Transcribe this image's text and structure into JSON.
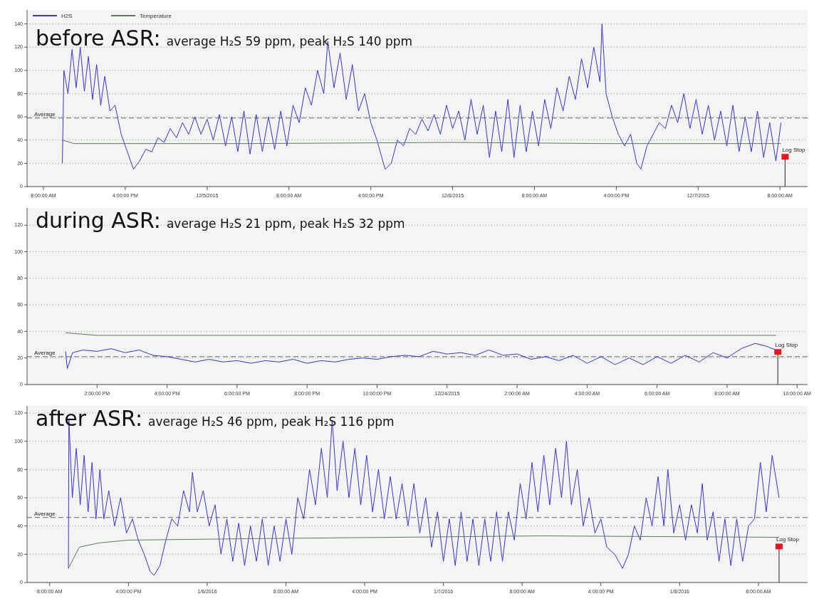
{
  "chart_data": [
    {
      "type": "line",
      "title": "before ASR:",
      "subtitle": "average H₂S 59 ppm, peak H₂S 140 ppm",
      "legend": "top left",
      "grid": "y",
      "marker": "none",
      "line_style": "solid",
      "xlim": [
        "2015-12-04T06:24",
        "2015-12-07T10:42"
      ],
      "xticks": [
        {
          "value": "2015-12-04T08:00",
          "label": "8:00:00 AM"
        },
        {
          "value": "2015-12-04T16:00",
          "label": "4:00:00 PM"
        },
        {
          "value": "2015-12-05T00:00",
          "label": "12/5/2015"
        },
        {
          "value": "2015-12-05T08:00",
          "label": "8:00:00 AM"
        },
        {
          "value": "2015-12-05T16:00",
          "label": "4:00:00 PM"
        },
        {
          "value": "2015-12-06T00:00",
          "label": "12/6/2015"
        },
        {
          "value": "2015-12-06T08:00",
          "label": "8:00:00 AM"
        },
        {
          "value": "2015-12-06T16:00",
          "label": "4:00:00 PM"
        },
        {
          "value": "2015-12-07T00:00",
          "label": "12/7/2015"
        },
        {
          "value": "2015-12-07T08:00",
          "label": "8:00:00 AM"
        }
      ],
      "ylim": [
        0,
        152
      ],
      "yticks": [
        0,
        20,
        40,
        60,
        80,
        100,
        120,
        140
      ],
      "ref_lines": [
        {
          "axis": "y",
          "value": 59,
          "label": "Average",
          "line_style": "dashed",
          "color": "#666666"
        }
      ],
      "annotations": [
        {
          "text": "Log Stop",
          "x": "2015-12-07T08:30",
          "y": 25
        }
      ],
      "series": [
        {
          "name": "H2S",
          "color": "#3535d8",
          "x": [
            "2015-12-04T09:51",
            "2015-12-04T10:00",
            "2015-12-04T10:24",
            "2015-12-04T10:48",
            "2015-12-04T11:12",
            "2015-12-04T11:36",
            "2015-12-04T12:00",
            "2015-12-04T12:24",
            "2015-12-04T12:48",
            "2015-12-04T13:12",
            "2015-12-04T13:36",
            "2015-12-04T14:00",
            "2015-12-04T14:30",
            "2015-12-04T15:00",
            "2015-12-04T15:36",
            "2015-12-04T16:12",
            "2015-12-04T16:48",
            "2015-12-04T17:24",
            "2015-12-04T18:00",
            "2015-12-04T18:36",
            "2015-12-04T19:12",
            "2015-12-04T19:48",
            "2015-12-04T20:24",
            "2015-12-04T21:00",
            "2015-12-04T21:36",
            "2015-12-04T22:12",
            "2015-12-04T22:48",
            "2015-12-04T23:24",
            "2015-12-05T00:00",
            "2015-12-05T00:36",
            "2015-12-05T01:12",
            "2015-12-05T01:48",
            "2015-12-05T02:24",
            "2015-12-05T03:00",
            "2015-12-05T03:36",
            "2015-12-05T04:12",
            "2015-12-05T04:48",
            "2015-12-05T05:24",
            "2015-12-05T06:00",
            "2015-12-05T06:36",
            "2015-12-05T07:12",
            "2015-12-05T07:48",
            "2015-12-05T08:24",
            "2015-12-05T09:00",
            "2015-12-05T09:36",
            "2015-12-05T10:12",
            "2015-12-05T10:48",
            "2015-12-05T11:24",
            "2015-12-05T11:48",
            "2015-12-05T12:24",
            "2015-12-05T13:00",
            "2015-12-05T13:36",
            "2015-12-05T14:12",
            "2015-12-05T14:48",
            "2015-12-05T15:24",
            "2015-12-05T16:00",
            "2015-12-05T16:36",
            "2015-12-05T17:24",
            "2015-12-05T18:00",
            "2015-12-05T18:36",
            "2015-12-05T19:12",
            "2015-12-05T19:48",
            "2015-12-05T20:24",
            "2015-12-05T21:00",
            "2015-12-05T21:36",
            "2015-12-05T22:12",
            "2015-12-05T22:48",
            "2015-12-05T23:24",
            "2015-12-06T00:00",
            "2015-12-06T00:36",
            "2015-12-06T01:12",
            "2015-12-06T01:48",
            "2015-12-06T02:24",
            "2015-12-06T03:00",
            "2015-12-06T03:36",
            "2015-12-06T04:12",
            "2015-12-06T04:48",
            "2015-12-06T05:24",
            "2015-12-06T06:00",
            "2015-12-06T06:36",
            "2015-12-06T07:12",
            "2015-12-06T07:48",
            "2015-12-06T08:24",
            "2015-12-06T09:00",
            "2015-12-06T09:36",
            "2015-12-06T10:12",
            "2015-12-06T10:48",
            "2015-12-06T11:24",
            "2015-12-06T12:00",
            "2015-12-06T12:36",
            "2015-12-06T13:12",
            "2015-12-06T13:48",
            "2015-12-06T14:24",
            "2015-12-06T14:36",
            "2015-12-06T15:00",
            "2015-12-06T15:36",
            "2015-12-06T16:12",
            "2015-12-06T16:48",
            "2015-12-06T17:24",
            "2015-12-06T18:00",
            "2015-12-06T18:24",
            "2015-12-06T19:00",
            "2015-12-06T19:36",
            "2015-12-06T20:12",
            "2015-12-06T20:48",
            "2015-12-06T21:24",
            "2015-12-06T22:00",
            "2015-12-06T22:36",
            "2015-12-06T23:12",
            "2015-12-06T23:48",
            "2015-12-07T00:24",
            "2015-12-07T01:00",
            "2015-12-07T01:36",
            "2015-12-07T02:12",
            "2015-12-07T02:48",
            "2015-12-07T03:24",
            "2015-12-07T04:00",
            "2015-12-07T04:36",
            "2015-12-07T05:12",
            "2015-12-07T05:48",
            "2015-12-07T06:24",
            "2015-12-07T07:00",
            "2015-12-07T07:36",
            "2015-12-07T08:06"
          ],
          "values": [
            20,
            100,
            80,
            118,
            85,
            120,
            82,
            112,
            75,
            105,
            70,
            95,
            65,
            70,
            45,
            30,
            15,
            22,
            32,
            30,
            42,
            38,
            50,
            42,
            55,
            45,
            60,
            45,
            58,
            40,
            62,
            35,
            60,
            30,
            65,
            28,
            62,
            30,
            60,
            32,
            65,
            35,
            70,
            55,
            85,
            70,
            100,
            80,
            125,
            85,
            115,
            75,
            105,
            65,
            80,
            55,
            40,
            15,
            20,
            40,
            35,
            50,
            45,
            58,
            48,
            62,
            45,
            70,
            50,
            65,
            40,
            75,
            45,
            70,
            25,
            65,
            30,
            75,
            25,
            70,
            30,
            65,
            35,
            75,
            50,
            85,
            65,
            95,
            75,
            110,
            85,
            120,
            90,
            140,
            80,
            60,
            45,
            35,
            45,
            20,
            15,
            35,
            45,
            55,
            50,
            70,
            55,
            80,
            50,
            75,
            45,
            70,
            40,
            65,
            35,
            70,
            30,
            60,
            30,
            65,
            25,
            55,
            22,
            55
          ]
        },
        {
          "name": "Temperature",
          "color": "#5b7a5b",
          "x": [
            "2015-12-04T09:51",
            "2015-12-04T11:00",
            "2015-12-05T04:00",
            "2015-12-06T00:00",
            "2015-12-06T15:00",
            "2015-12-07T08:06"
          ],
          "values": [
            40,
            37,
            37,
            38,
            37,
            37
          ]
        }
      ]
    },
    {
      "type": "line",
      "title": "during ASR:",
      "subtitle": "average H₂S 21 ppm, peak H₂S 32 ppm",
      "grid": "y",
      "marker": "none",
      "line_style": "solid",
      "xlim": [
        "2015-12-23T12:00",
        "2015-12-24T10:18"
      ],
      "xticks": [
        {
          "value": "2015-12-23T14:00",
          "label": "2:00:00 PM"
        },
        {
          "value": "2015-12-23T16:00",
          "label": "4:00:00 PM"
        },
        {
          "value": "2015-12-23T18:00",
          "label": "6:00:00 PM"
        },
        {
          "value": "2015-12-23T20:00",
          "label": "8:00:00 PM"
        },
        {
          "value": "2015-12-23T22:00",
          "label": "10:00:00 PM"
        },
        {
          "value": "2015-12-24T00:00",
          "label": "12/24/2015"
        },
        {
          "value": "2015-12-24T02:00",
          "label": "2:00:00 AM"
        },
        {
          "value": "2015-12-24T04:00",
          "label": "4:00:00 AM"
        },
        {
          "value": "2015-12-24T06:00",
          "label": "6:00:00 AM"
        },
        {
          "value": "2015-12-24T08:00",
          "label": "8:00:00 AM"
        },
        {
          "value": "2015-12-24T10:00",
          "label": "10:00:00 AM"
        }
      ],
      "ylim": [
        0,
        133
      ],
      "yticks": [
        0,
        20,
        40,
        60,
        80,
        100,
        120
      ],
      "ref_lines": [
        {
          "axis": "y",
          "value": 21,
          "label": "Average",
          "line_style": "dashed",
          "color": "#666666"
        }
      ],
      "annotations": [
        {
          "text": "Log Stop",
          "x": "2015-12-24T09:27",
          "y": 24
        }
      ],
      "series": [
        {
          "color": "#3535d8",
          "x": [
            "2015-12-23T13:06",
            "2015-12-23T13:09",
            "2015-12-23T13:18",
            "2015-12-23T13:36",
            "2015-12-23T14:00",
            "2015-12-23T14:24",
            "2015-12-23T14:48",
            "2015-12-23T15:12",
            "2015-12-23T15:36",
            "2015-12-23T16:00",
            "2015-12-23T16:24",
            "2015-12-23T16:48",
            "2015-12-23T17:12",
            "2015-12-23T17:36",
            "2015-12-23T18:00",
            "2015-12-23T18:24",
            "2015-12-23T18:48",
            "2015-12-23T19:12",
            "2015-12-23T19:36",
            "2015-12-23T20:00",
            "2015-12-23T20:24",
            "2015-12-23T20:48",
            "2015-12-23T21:12",
            "2015-12-23T21:36",
            "2015-12-23T22:00",
            "2015-12-23T22:24",
            "2015-12-23T22:48",
            "2015-12-23T23:12",
            "2015-12-23T23:36",
            "2015-12-24T00:00",
            "2015-12-24T00:24",
            "2015-12-24T00:48",
            "2015-12-24T01:12",
            "2015-12-24T01:36",
            "2015-12-24T02:00",
            "2015-12-24T02:24",
            "2015-12-24T02:48",
            "2015-12-24T03:12",
            "2015-12-24T03:36",
            "2015-12-24T04:00",
            "2015-12-24T04:24",
            "2015-12-24T04:48",
            "2015-12-24T05:12",
            "2015-12-24T05:36",
            "2015-12-24T06:00",
            "2015-12-24T06:24",
            "2015-12-24T06:48",
            "2015-12-24T07:12",
            "2015-12-24T07:36",
            "2015-12-24T08:00",
            "2015-12-24T08:24",
            "2015-12-24T08:48",
            "2015-12-24T09:06",
            "2015-12-24T09:24"
          ],
          "values": [
            25,
            12,
            24,
            26,
            25,
            27,
            24,
            26,
            22,
            21,
            19,
            17,
            19,
            17,
            18,
            16,
            18,
            17,
            19,
            16,
            18,
            17,
            19,
            20,
            19,
            21,
            22,
            21,
            25,
            23,
            24,
            22,
            26,
            22,
            23,
            19,
            21,
            18,
            22,
            16,
            21,
            15,
            20,
            15,
            21,
            16,
            22,
            17,
            24,
            20,
            27,
            31,
            29,
            26
          ]
        },
        {
          "color": "#5b7a5b",
          "x": [
            "2015-12-23T13:06",
            "2015-12-23T14:00",
            "2015-12-23T22:00",
            "2015-12-24T09:24"
          ],
          "values": [
            39,
            37,
            37,
            37
          ]
        }
      ]
    },
    {
      "type": "line",
      "title": "after ASR:",
      "subtitle": "average H₂S 46 ppm, peak H₂S 116 ppm",
      "grid": "y",
      "marker": "none",
      "line_style": "solid",
      "xlim": [
        "2016-01-05T05:42",
        "2016-01-08T13:00"
      ],
      "xticks": [
        {
          "value": "2016-01-05T08:00",
          "label": "8:00:00 AM"
        },
        {
          "value": "2016-01-05T16:00",
          "label": "4:00:00 PM"
        },
        {
          "value": "2016-01-06T00:00",
          "label": "1/6/2016"
        },
        {
          "value": "2016-01-06T08:00",
          "label": "8:00:00 AM"
        },
        {
          "value": "2016-01-06T16:00",
          "label": "4:00:00 PM"
        },
        {
          "value": "2016-01-07T00:00",
          "label": "1/7/2016"
        },
        {
          "value": "2016-01-07T08:00",
          "label": "8:00:00 AM"
        },
        {
          "value": "2016-01-07T16:00",
          "label": "4:00:00 PM"
        },
        {
          "value": "2016-01-08T00:00",
          "label": "1/8/2016"
        },
        {
          "value": "2016-01-08T08:00",
          "label": "8:00:00 AM"
        }
      ],
      "ylim": [
        0,
        125
      ],
      "yticks": [
        0,
        20,
        40,
        60,
        80,
        100,
        120
      ],
      "ref_lines": [
        {
          "axis": "y",
          "value": 46,
          "label": "Average",
          "line_style": "dashed",
          "color": "#666666"
        }
      ],
      "annotations": [
        {
          "text": "Log Stop",
          "x": "2016-01-08T10:06",
          "y": 25
        }
      ],
      "series": [
        {
          "color": "#3535d8",
          "x": [
            "2016-01-05T09:54",
            "2016-01-05T09:57",
            "2016-01-05T10:18",
            "2016-01-05T10:42",
            "2016-01-05T11:06",
            "2016-01-05T11:30",
            "2016-01-05T11:54",
            "2016-01-05T12:18",
            "2016-01-05T12:42",
            "2016-01-05T13:06",
            "2016-01-05T13:30",
            "2016-01-05T14:00",
            "2016-01-05T14:36",
            "2016-01-05T15:12",
            "2016-01-05T15:48",
            "2016-01-05T16:24",
            "2016-01-05T17:00",
            "2016-01-05T17:36",
            "2016-01-05T18:12",
            "2016-01-05T18:36",
            "2016-01-05T19:12",
            "2016-01-05T19:48",
            "2016-01-05T20:24",
            "2016-01-05T21:00",
            "2016-01-05T21:36",
            "2016-01-05T22:12",
            "2016-01-05T22:30",
            "2016-01-05T23:00",
            "2016-01-05T23:36",
            "2016-01-06T00:12",
            "2016-01-06T00:48",
            "2016-01-06T01:24",
            "2016-01-06T02:00",
            "2016-01-06T02:36",
            "2016-01-06T03:12",
            "2016-01-06T03:48",
            "2016-01-06T04:24",
            "2016-01-06T05:00",
            "2016-01-06T05:36",
            "2016-01-06T06:12",
            "2016-01-06T06:48",
            "2016-01-06T07:24",
            "2016-01-06T08:00",
            "2016-01-06T08:36",
            "2016-01-06T09:12",
            "2016-01-06T09:48",
            "2016-01-06T10:24",
            "2016-01-06T11:00",
            "2016-01-06T11:36",
            "2016-01-06T12:12",
            "2016-01-06T12:42",
            "2016-01-06T13:12",
            "2016-01-06T13:48",
            "2016-01-06T14:24",
            "2016-01-06T15:00",
            "2016-01-06T15:36",
            "2016-01-06T16:12",
            "2016-01-06T16:48",
            "2016-01-06T17:24",
            "2016-01-06T18:00",
            "2016-01-06T18:36",
            "2016-01-06T19:12",
            "2016-01-06T19:48",
            "2016-01-06T20:24",
            "2016-01-06T21:00",
            "2016-01-06T21:36",
            "2016-01-06T22:12",
            "2016-01-06T22:48",
            "2016-01-06T23:24",
            "2016-01-07T00:00",
            "2016-01-07T00:36",
            "2016-01-07T01:12",
            "2016-01-07T01:48",
            "2016-01-07T02:24",
            "2016-01-07T03:00",
            "2016-01-07T03:36",
            "2016-01-07T04:12",
            "2016-01-07T04:48",
            "2016-01-07T05:24",
            "2016-01-07T06:00",
            "2016-01-07T06:36",
            "2016-01-07T07:12",
            "2016-01-07T07:48",
            "2016-01-07T08:24",
            "2016-01-07T09:00",
            "2016-01-07T09:36",
            "2016-01-07T10:12",
            "2016-01-07T10:48",
            "2016-01-07T11:24",
            "2016-01-07T12:00",
            "2016-01-07T12:30",
            "2016-01-07T13:00",
            "2016-01-07T13:36",
            "2016-01-07T14:12",
            "2016-01-07T14:48",
            "2016-01-07T15:24",
            "2016-01-07T16:00",
            "2016-01-07T16:36",
            "2016-01-07T17:24",
            "2016-01-07T18:12",
            "2016-01-07T18:48",
            "2016-01-07T19:24",
            "2016-01-07T20:00",
            "2016-01-07T20:36",
            "2016-01-07T21:12",
            "2016-01-07T21:48",
            "2016-01-07T22:24",
            "2016-01-07T22:48",
            "2016-01-07T23:24",
            "2016-01-08T00:00",
            "2016-01-08T00:36",
            "2016-01-08T01:12",
            "2016-01-08T01:48",
            "2016-01-08T02:18",
            "2016-01-08T02:48",
            "2016-01-08T03:24",
            "2016-01-08T04:00",
            "2016-01-08T04:36",
            "2016-01-08T05:12",
            "2016-01-08T05:48",
            "2016-01-08T06:24",
            "2016-01-08T07:00",
            "2016-01-08T07:36",
            "2016-01-08T08:12",
            "2016-01-08T08:48",
            "2016-01-08T09:24",
            "2016-01-08T10:06"
          ],
          "values": [
            10,
            115,
            60,
            95,
            55,
            90,
            50,
            85,
            45,
            80,
            45,
            65,
            40,
            60,
            35,
            45,
            30,
            20,
            8,
            5,
            12,
            30,
            45,
            40,
            65,
            50,
            78,
            50,
            65,
            40,
            55,
            20,
            45,
            15,
            42,
            12,
            40,
            15,
            45,
            12,
            40,
            15,
            45,
            20,
            60,
            45,
            80,
            55,
            95,
            60,
            115,
            65,
            100,
            60,
            95,
            55,
            90,
            50,
            80,
            45,
            75,
            45,
            70,
            40,
            70,
            35,
            60,
            25,
            50,
            15,
            45,
            12,
            50,
            15,
            45,
            12,
            45,
            15,
            50,
            15,
            50,
            30,
            70,
            45,
            85,
            50,
            90,
            55,
            95,
            60,
            100,
            55,
            80,
            40,
            60,
            35,
            45,
            25,
            20,
            10,
            20,
            40,
            30,
            60,
            40,
            75,
            40,
            80,
            35,
            55,
            30,
            55,
            35,
            70,
            30,
            50,
            15,
            45,
            12,
            45,
            15,
            40,
            45,
            85,
            50,
            90,
            60
          ]
        },
        {
          "color": "#5b7a5b",
          "x": [
            "2016-01-05T09:54",
            "2016-01-05T11:00",
            "2016-01-05T13:00",
            "2016-01-05T16:00",
            "2016-01-06T04:00",
            "2016-01-06T19:00",
            "2016-01-07T10:00",
            "2016-01-08T10:06"
          ],
          "values": [
            10,
            25,
            28,
            30,
            31,
            32,
            33,
            32
          ]
        }
      ]
    }
  ]
}
